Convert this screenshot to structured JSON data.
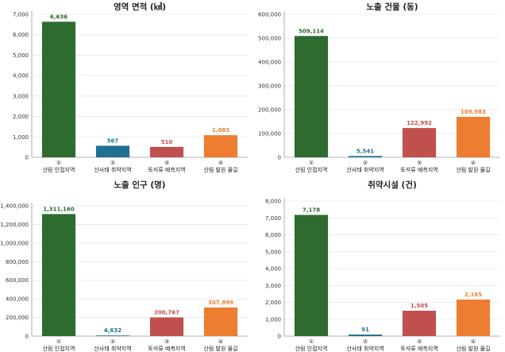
{
  "chart_data": [
    {
      "type": "bar",
      "title": "영역 면적 (㎢)",
      "categories": [
        "산림 인접지역",
        "산사태 취약지역",
        "토석류 예측지역",
        "산림 발원 물길"
      ],
      "markers": [
        "①",
        "②",
        "③",
        "④"
      ],
      "values": [
        6636,
        567,
        510,
        1083
      ],
      "value_labels": [
        "6,636",
        "567",
        "510",
        "1,083"
      ],
      "ylim": [
        0,
        7000
      ],
      "yticks": [
        0,
        1000,
        2000,
        3000,
        4000,
        5000,
        6000,
        7000
      ],
      "ytick_labels": [
        "0",
        "1,000",
        "2,000",
        "3,000",
        "4,000",
        "5,000",
        "6,000",
        "7,000"
      ],
      "xlabel": "",
      "ylabel": "",
      "grid": true
    },
    {
      "type": "bar",
      "title": "노출 건물 (동)",
      "categories": [
        "산림 인접지역",
        "산사태 취약지역",
        "토석류 예측지역",
        "산림 발원 물길"
      ],
      "markers": [
        "①",
        "②",
        "③",
        "④"
      ],
      "values": [
        509114,
        5541,
        122992,
        169983
      ],
      "value_labels": [
        "509,114",
        "5,541",
        "122,992",
        "169,983"
      ],
      "ylim": [
        0,
        600000
      ],
      "yticks": [
        0,
        100000,
        200000,
        300000,
        400000,
        500000,
        600000
      ],
      "ytick_labels": [
        "0",
        "100,000",
        "200,000",
        "300,000",
        "400,000",
        "500,000",
        "600,000"
      ],
      "xlabel": "",
      "ylabel": "",
      "grid": true
    },
    {
      "type": "bar",
      "title": "노출 인구 (명)",
      "categories": [
        "산림 인접지역",
        "산사태 취약지역",
        "토석류 예측지역",
        "산림 발원 물길"
      ],
      "markers": [
        "①",
        "②",
        "③",
        "④"
      ],
      "values": [
        1311160,
        4632,
        200767,
        307899
      ],
      "value_labels": [
        "1,311,160",
        "4,632",
        "200,767",
        "307,899"
      ],
      "ylim": [
        0,
        1400000
      ],
      "yticks": [
        0,
        200000,
        400000,
        600000,
        800000,
        1000000,
        1200000,
        1400000
      ],
      "ytick_labels": [
        "0",
        "200,000",
        "400,000",
        "600,000",
        "800,000",
        "1,000,000",
        "1,200,000",
        "1,400,000"
      ],
      "xlabel": "",
      "ylabel": "",
      "grid": true
    },
    {
      "type": "bar",
      "title": "취약시설 (건)",
      "categories": [
        "산림 인접지역",
        "산사태 취약지역",
        "토석류 예측지역",
        "산림 발원 물길"
      ],
      "markers": [
        "①",
        "②",
        "③",
        "④"
      ],
      "values": [
        7178,
        91,
        1505,
        2165
      ],
      "value_labels": [
        "7,178",
        "91",
        "1,505",
        "2,165"
      ],
      "ylim": [
        0,
        8000
      ],
      "yticks": [
        0,
        1000,
        2000,
        3000,
        4000,
        5000,
        6000,
        7000,
        8000
      ],
      "ytick_labels": [
        "0",
        "1,000",
        "2,000",
        "3,000",
        "4,000",
        "5,000",
        "6,000",
        "7,000",
        "8,000"
      ],
      "xlabel": "",
      "ylabel": "",
      "grid": true
    }
  ],
  "colors": {
    "bars": [
      "#2e6b2e",
      "#236f91",
      "#c0504d",
      "#ed7d31"
    ],
    "labels": [
      "#2e6b2e",
      "#236f91",
      "#c0504d",
      "#ed7d31"
    ]
  }
}
